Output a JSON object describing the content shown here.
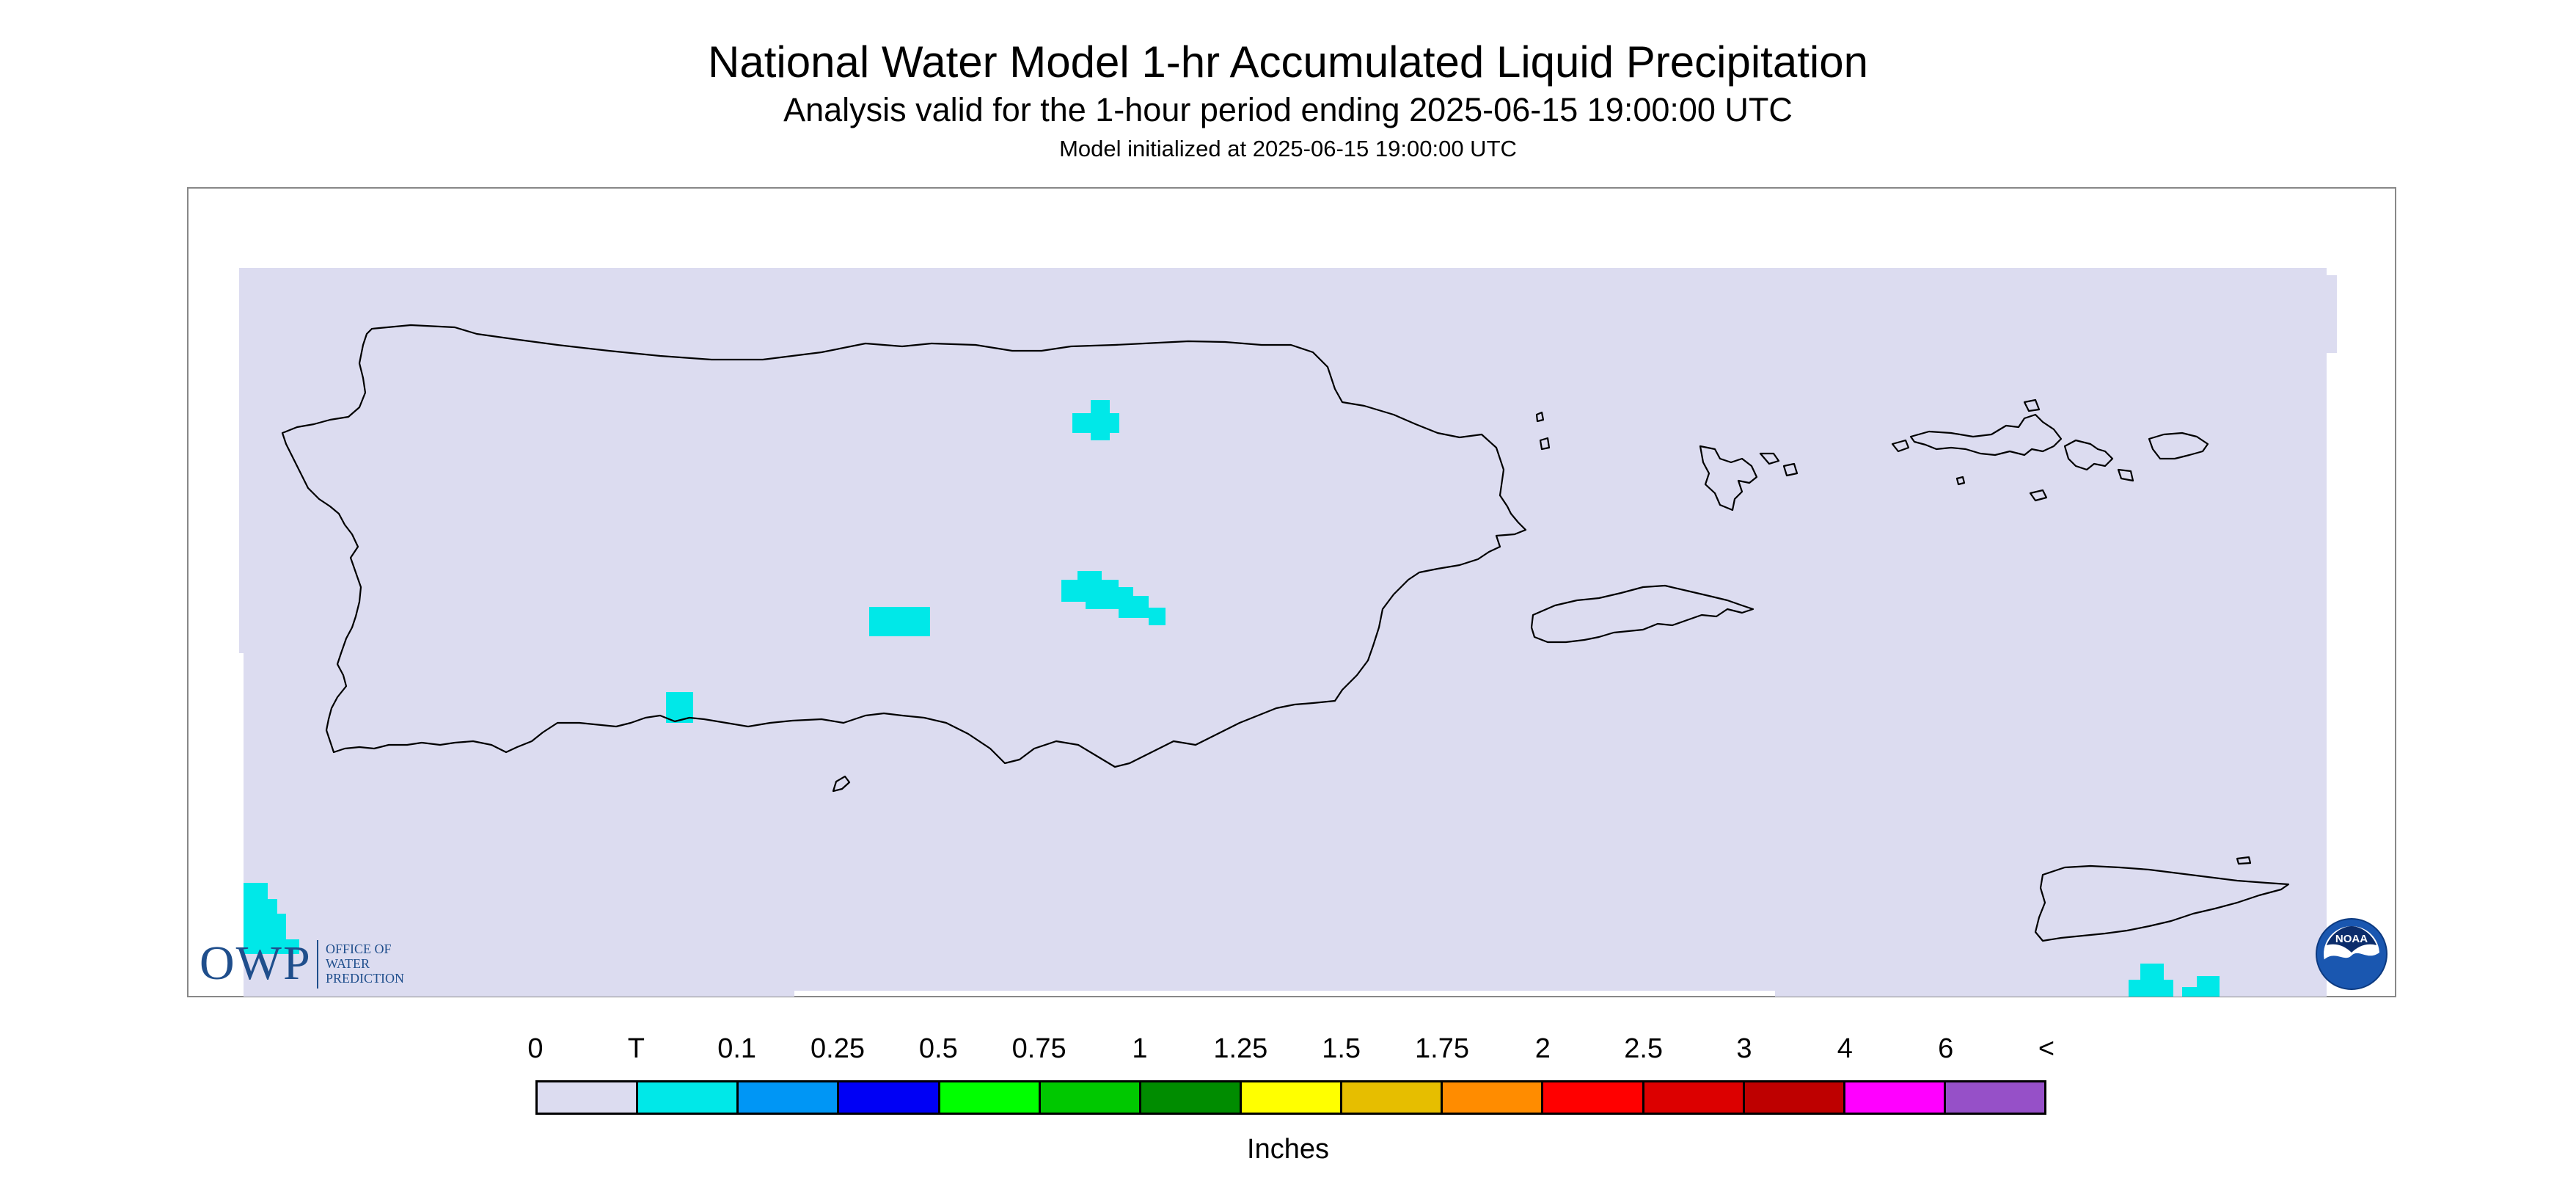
{
  "header": {
    "title": "National Water Model 1-hr Accumulated Liquid Precipitation",
    "subtitle": "Analysis valid for the 1-hour period ending 2025-06-15 19:00:00 UTC",
    "init_line": "Model initialized at 2025-06-15 19:00:00 UTC"
  },
  "legend": {
    "ticks": [
      "0",
      "T",
      "0.1",
      "0.25",
      "0.5",
      "0.75",
      "1",
      "1.25",
      "1.5",
      "1.75",
      "2",
      "2.5",
      "3",
      "4",
      "6",
      "<"
    ],
    "colors": [
      "#dcdcf0",
      "#00e8e8",
      "#0096f5",
      "#0000f5",
      "#00ff00",
      "#00c800",
      "#008c00",
      "#ffff00",
      "#e6be00",
      "#ff8c00",
      "#ff0000",
      "#dc0000",
      "#be0000",
      "#ff00ff",
      "#9650c8"
    ],
    "units": "Inches"
  },
  "map": {
    "background_color": "#dcdcf0",
    "coastline_color": "#000000",
    "precip_color": "#00e8e8",
    "regions": [
      "Puerto Rico",
      "Vieques",
      "Culebra",
      "St. Thomas",
      "St. John",
      "St. Croix"
    ],
    "precip_category_shown": "T"
  },
  "logos": {
    "owp_letters": "OWP",
    "owp_text": [
      "OFFICE OF",
      "WATER",
      "PREDICTION"
    ],
    "noaa_text": "NOAA",
    "owp_icon": "owp-logo-icon",
    "noaa_icon": "noaa-logo-icon"
  }
}
